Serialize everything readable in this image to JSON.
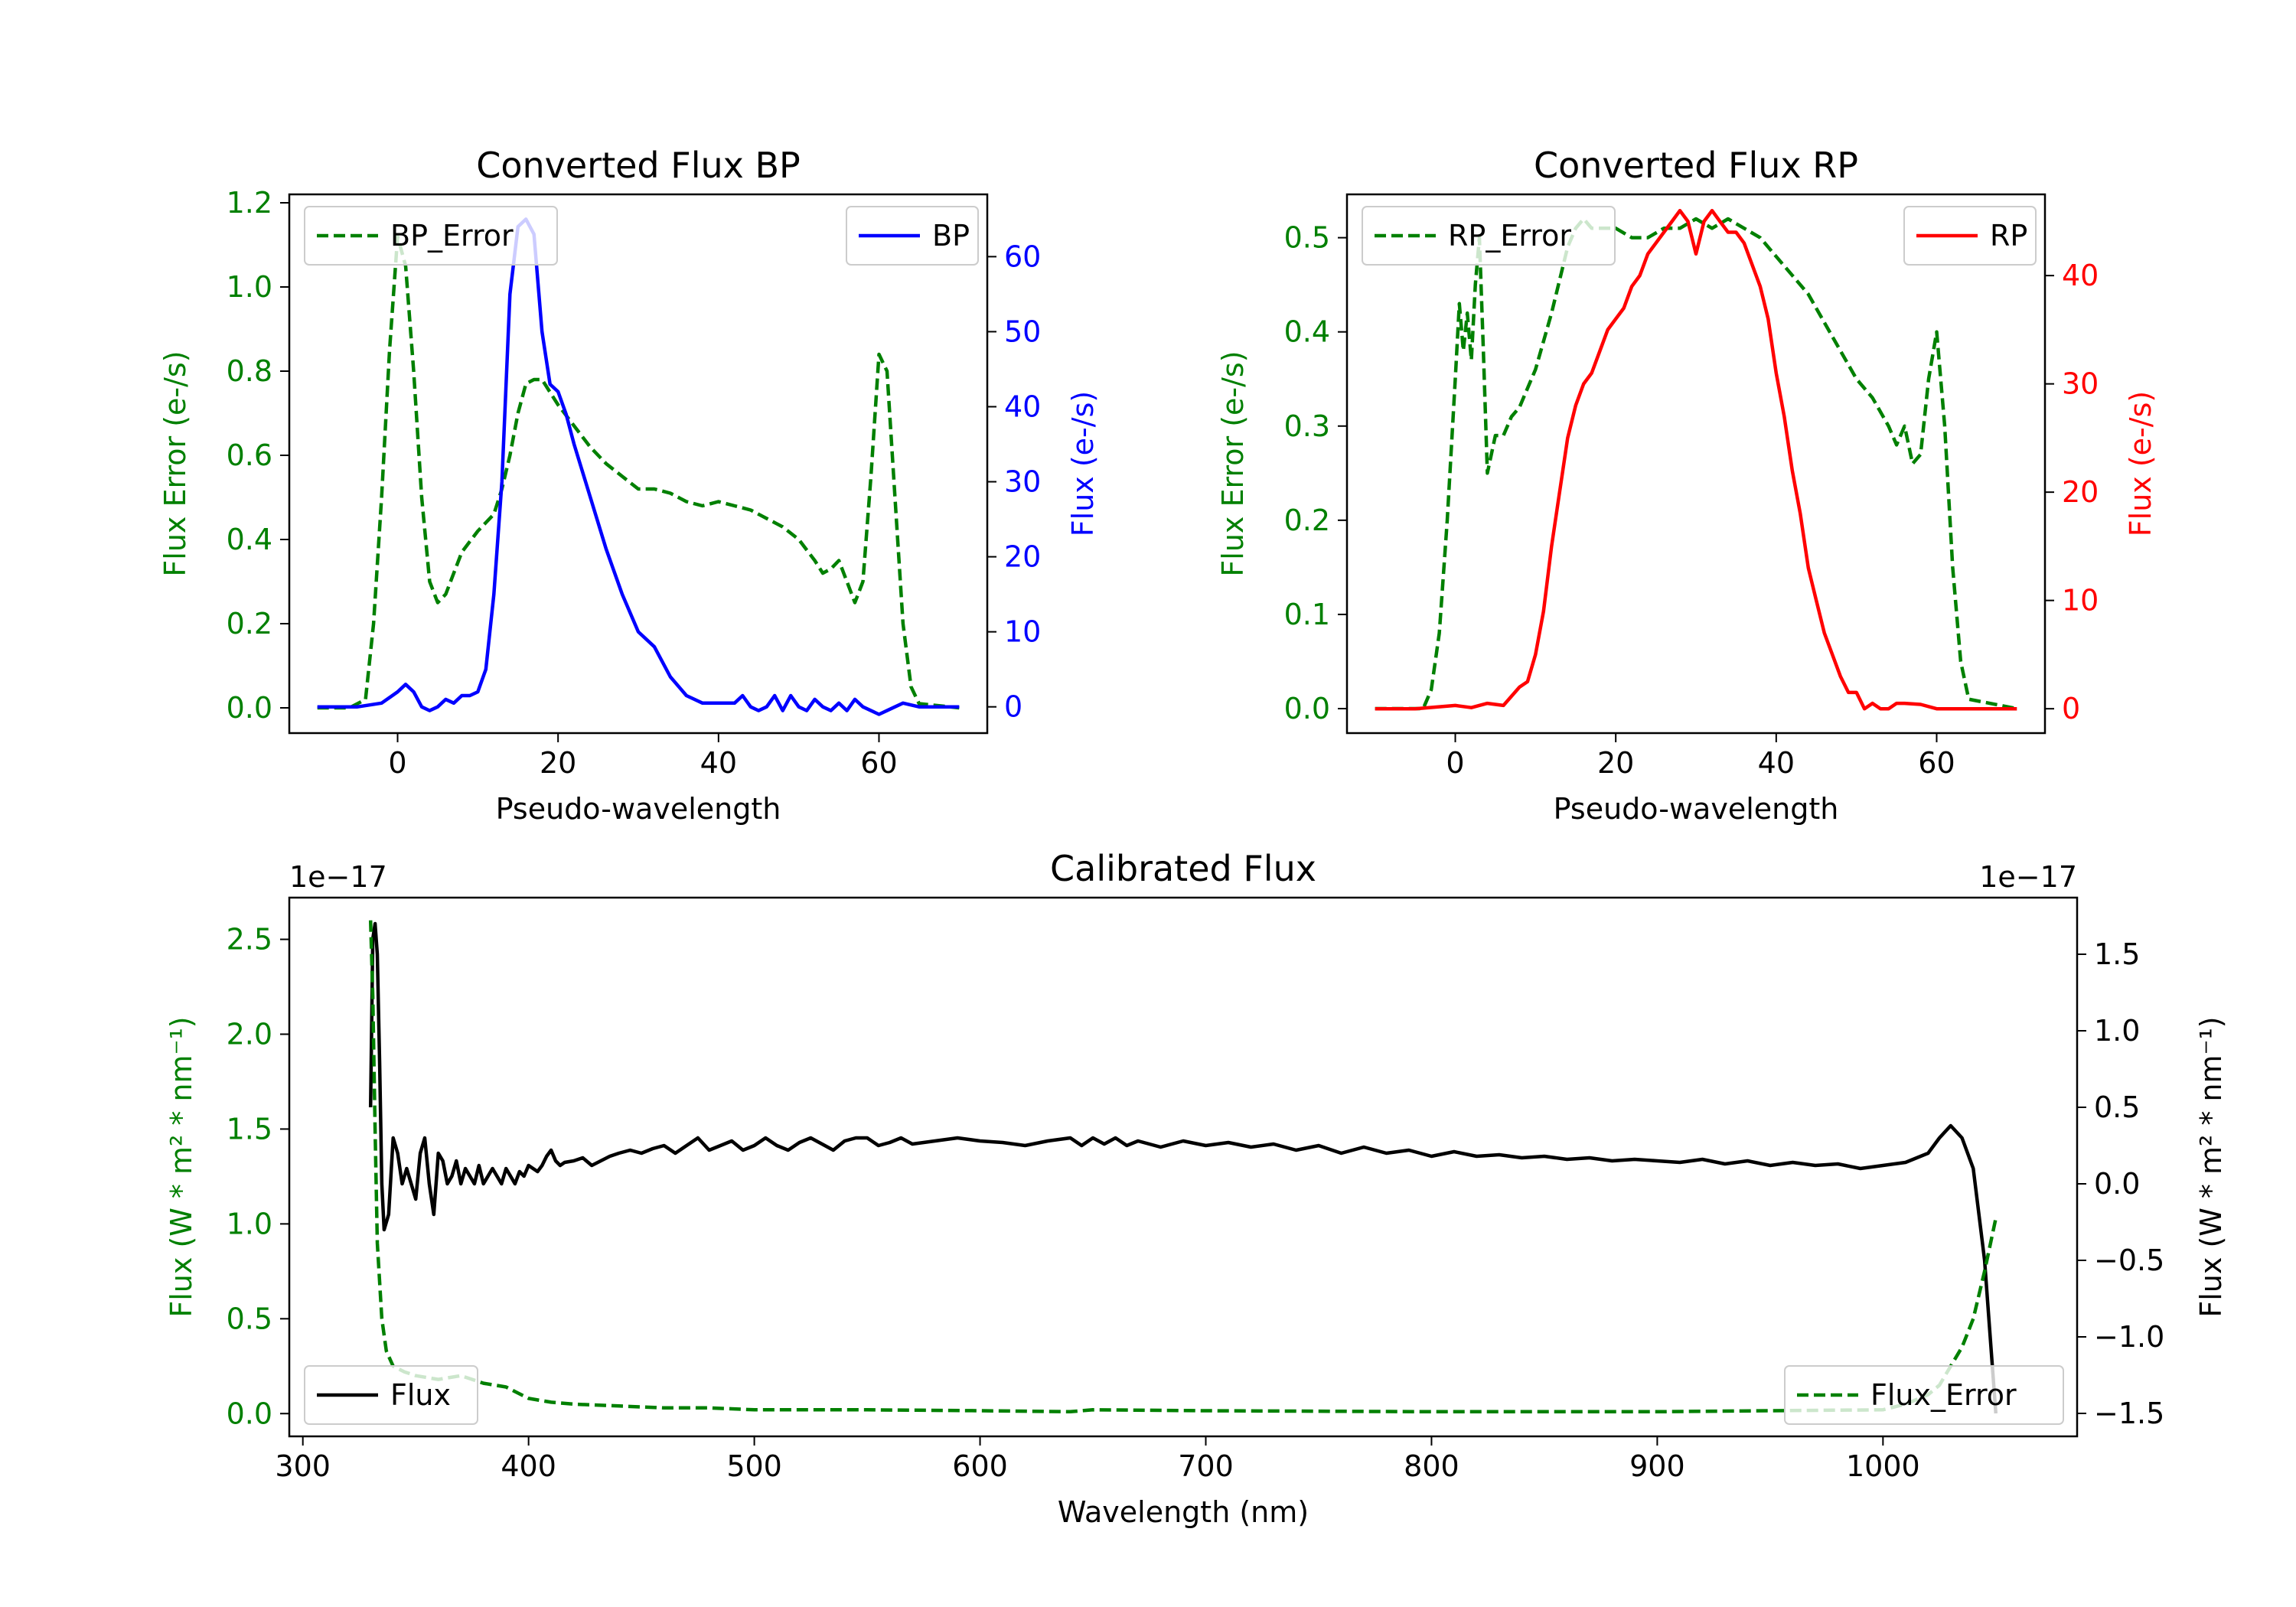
{
  "colors": {
    "bp": "#0000ff",
    "rp": "#ff0000",
    "error": "#008000",
    "flux": "#000000"
  },
  "chart_data": [
    {
      "type": "line",
      "title": "Converted Flux BP",
      "xlabel": "Pseudo-wavelength",
      "ylabel_left": "Flux Error (e-/s)",
      "ylabel_right": "Flux (e-/s)",
      "xlim": [
        -13.5,
        73.5
      ],
      "ylim_left": [
        -0.06,
        1.22
      ],
      "ylim_right": [
        -3.5,
        68.3
      ],
      "xticks": [
        0,
        20,
        40,
        60
      ],
      "yticks_left": [
        "0.0",
        "0.2",
        "0.4",
        "0.6",
        "0.8",
        "1.0",
        "1.2"
      ],
      "yticks_right": [
        "0",
        "10",
        "20",
        "30",
        "40",
        "50",
        "60"
      ],
      "legend_left": "BP_Error",
      "legend_right": "BP",
      "series": [
        {
          "name": "BP_Error",
          "axis": "left",
          "style": "dashed",
          "x": [
            -10,
            -6,
            -4,
            -3,
            -2,
            -1,
            0,
            1,
            2,
            3,
            4,
            5,
            6,
            7,
            8,
            10,
            12,
            13,
            14,
            15,
            16,
            17,
            18,
            19,
            20,
            22,
            24,
            26,
            28,
            30,
            32,
            34,
            35,
            36,
            38,
            40,
            42,
            44,
            46,
            48,
            50,
            52,
            53,
            54,
            55,
            56,
            57,
            58,
            59,
            60,
            61,
            62,
            63,
            64,
            65,
            70
          ],
          "y": [
            0,
            0,
            0.02,
            0.2,
            0.5,
            0.85,
            1.12,
            1.05,
            0.8,
            0.5,
            0.3,
            0.25,
            0.27,
            0.32,
            0.37,
            0.42,
            0.46,
            0.52,
            0.6,
            0.7,
            0.77,
            0.78,
            0.78,
            0.75,
            0.72,
            0.67,
            0.62,
            0.58,
            0.55,
            0.52,
            0.52,
            0.51,
            0.5,
            0.49,
            0.48,
            0.49,
            0.48,
            0.47,
            0.45,
            0.43,
            0.4,
            0.35,
            0.32,
            0.33,
            0.35,
            0.3,
            0.25,
            0.3,
            0.55,
            0.84,
            0.8,
            0.5,
            0.2,
            0.05,
            0.01,
            0
          ]
        },
        {
          "name": "BP",
          "axis": "right",
          "style": "solid",
          "x": [
            -10,
            -5,
            -2,
            0,
            1,
            2,
            3,
            4,
            5,
            6,
            7,
            8,
            9,
            10,
            11,
            12,
            13,
            14,
            15,
            16,
            17,
            18,
            19,
            20,
            21,
            22,
            24,
            26,
            28,
            30,
            32,
            34,
            36,
            38,
            40,
            42,
            43,
            44,
            45,
            46,
            47,
            48,
            49,
            50,
            51,
            52,
            53,
            54,
            55,
            56,
            57,
            58,
            59,
            60,
            61,
            62,
            63,
            65,
            70
          ],
          "y": [
            0,
            0,
            0.5,
            2,
            3,
            2,
            0,
            -0.5,
            0,
            1,
            0.5,
            1.5,
            1.5,
            2,
            5,
            15,
            30,
            55,
            64,
            65,
            63,
            50,
            43,
            42,
            39,
            35,
            28,
            21,
            15,
            10,
            8,
            4,
            1.5,
            0.5,
            0.5,
            0.5,
            1.5,
            0,
            -0.5,
            0,
            1.5,
            -0.5,
            1.5,
            0,
            -0.5,
            1,
            0,
            -0.5,
            0.5,
            -0.5,
            1,
            0,
            -0.5,
            -1,
            -0.5,
            0,
            0.5,
            0,
            0
          ]
        }
      ]
    },
    {
      "type": "line",
      "title": "Converted Flux RP",
      "xlabel": "Pseudo-wavelength",
      "ylabel_left": "Flux Error (e-/s)",
      "ylabel_right": "Flux (e-/s)",
      "xlim": [
        -13.5,
        73.5
      ],
      "ylim_left": [
        -0.026,
        0.546
      ],
      "ylim_right": [
        -2.25,
        47.5
      ],
      "xticks": [
        0,
        20,
        40,
        60
      ],
      "yticks_left": [
        "0.0",
        "0.1",
        "0.2",
        "0.3",
        "0.4",
        "0.5"
      ],
      "yticks_right": [
        "0",
        "10",
        "20",
        "30",
        "40"
      ],
      "legend_left": "RP_Error",
      "legend_right": "RP",
      "series": [
        {
          "name": "RP_Error",
          "axis": "left",
          "style": "dashed",
          "x": [
            -10,
            -4,
            -3,
            -2,
            -1,
            0,
            0.5,
            1,
            1.5,
            2,
            2.5,
            3,
            3.5,
            4,
            5,
            6,
            7,
            8,
            10,
            12,
            14,
            15,
            16,
            17,
            18,
            20,
            22,
            24,
            26,
            28,
            30,
            32,
            34,
            36,
            38,
            40,
            42,
            44,
            46,
            48,
            50,
            52,
            54,
            55,
            56,
            57,
            58,
            59,
            60,
            61,
            62,
            63,
            64,
            70
          ],
          "y": [
            0,
            0,
            0.02,
            0.08,
            0.2,
            0.35,
            0.43,
            0.38,
            0.42,
            0.37,
            0.45,
            0.5,
            0.38,
            0.25,
            0.29,
            0.29,
            0.31,
            0.32,
            0.36,
            0.42,
            0.49,
            0.51,
            0.52,
            0.51,
            0.51,
            0.51,
            0.5,
            0.5,
            0.51,
            0.51,
            0.52,
            0.51,
            0.52,
            0.51,
            0.5,
            0.48,
            0.46,
            0.44,
            0.41,
            0.38,
            0.35,
            0.33,
            0.3,
            0.28,
            0.3,
            0.26,
            0.27,
            0.35,
            0.4,
            0.3,
            0.15,
            0.05,
            0.01,
            0
          ]
        },
        {
          "name": "RP",
          "axis": "right",
          "style": "solid",
          "x": [
            -10,
            -5,
            0,
            2,
            4,
            6,
            8,
            9,
            10,
            11,
            12,
            13,
            14,
            15,
            16,
            17,
            18,
            19,
            20,
            21,
            22,
            23,
            24,
            25,
            26,
            27,
            28,
            29,
            30,
            31,
            32,
            33,
            34,
            35,
            36,
            37,
            38,
            39,
            40,
            41,
            42,
            43,
            44,
            45,
            46,
            47,
            48,
            49,
            50,
            51,
            52,
            53,
            54,
            55,
            56,
            58,
            60,
            65,
            70
          ],
          "y": [
            0,
            0,
            0.3,
            0.1,
            0.5,
            0.3,
            2,
            2.5,
            5,
            9,
            15,
            20,
            25,
            28,
            30,
            31,
            33,
            35,
            36,
            37,
            39,
            40,
            42,
            43,
            44,
            45,
            46,
            45,
            42,
            45,
            46,
            45,
            44,
            44,
            43,
            41,
            39,
            36,
            31,
            27,
            22,
            18,
            13,
            10,
            7,
            5,
            3,
            1.5,
            1.5,
            0,
            0.5,
            0,
            0,
            0.5,
            0.5,
            0.4,
            0,
            0,
            0
          ]
        }
      ]
    },
    {
      "type": "line",
      "title": "Calibrated Flux",
      "xlabel": "Wavelength (nm)",
      "ylabel_left": "Flux (W * m² * nm⁻¹)",
      "ylabel_right": "Flux (W * m² * nm⁻¹)",
      "offset_left": "1e−17",
      "offset_right": "1e−17",
      "xlim": [
        294,
        1086
      ],
      "ylim_left": [
        -0.12,
        2.72
      ],
      "ylim_right": [
        -1.65,
        1.87
      ],
      "xticks": [
        300,
        400,
        500,
        600,
        700,
        800,
        900,
        1000
      ],
      "yticks_left": [
        "0.0",
        "0.5",
        "1.0",
        "1.5",
        "2.0",
        "2.5"
      ],
      "yticks_right": [
        "−1.5",
        "−1.0",
        "−0.5",
        "0.0",
        "0.5",
        "1.0",
        "1.5"
      ],
      "legend_left": "Flux",
      "legend_right": "Flux_Error",
      "series": [
        {
          "name": "Flux",
          "axis": "right",
          "style": "solid",
          "x": [
            330,
            331,
            332,
            333,
            334,
            335,
            336,
            338,
            340,
            342,
            344,
            346,
            348,
            350,
            352,
            354,
            356,
            358,
            360,
            362,
            364,
            366,
            368,
            370,
            372,
            374,
            376,
            378,
            380,
            382,
            384,
            386,
            388,
            390,
            392,
            394,
            396,
            398,
            400,
            402,
            404,
            406,
            408,
            410,
            412,
            414,
            416,
            420,
            424,
            428,
            432,
            436,
            440,
            445,
            450,
            455,
            460,
            465,
            470,
            475,
            480,
            485,
            490,
            495,
            500,
            505,
            510,
            515,
            520,
            525,
            530,
            535,
            540,
            545,
            550,
            555,
            560,
            565,
            570,
            580,
            590,
            600,
            610,
            620,
            630,
            640,
            645,
            650,
            655,
            660,
            665,
            670,
            680,
            690,
            700,
            710,
            720,
            730,
            740,
            750,
            760,
            770,
            780,
            790,
            800,
            810,
            820,
            830,
            840,
            850,
            860,
            870,
            880,
            890,
            900,
            910,
            920,
            930,
            940,
            950,
            960,
            970,
            980,
            990,
            1000,
            1010,
            1020,
            1025,
            1030,
            1035,
            1040,
            1045,
            1048,
            1050
          ],
          "y": [
            0.5,
            1.6,
            1.7,
            1.5,
            0.8,
            0,
            -0.3,
            -0.2,
            0.3,
            0.2,
            0,
            0.1,
            0,
            -0.1,
            0.2,
            0.3,
            0,
            -0.2,
            0.2,
            0.15,
            0,
            0.05,
            0.15,
            0,
            0.1,
            0.05,
            0,
            0.12,
            0,
            0.05,
            0.1,
            0.05,
            0,
            0.1,
            0.05,
            0,
            0.08,
            0.05,
            0.12,
            0.1,
            0.08,
            0.12,
            0.18,
            0.22,
            0.15,
            0.12,
            0.14,
            0.15,
            0.17,
            0.12,
            0.15,
            0.18,
            0.2,
            0.22,
            0.2,
            0.23,
            0.25,
            0.2,
            0.25,
            0.3,
            0.22,
            0.25,
            0.28,
            0.22,
            0.25,
            0.3,
            0.25,
            0.22,
            0.27,
            0.3,
            0.26,
            0.22,
            0.28,
            0.3,
            0.3,
            0.25,
            0.27,
            0.3,
            0.26,
            0.28,
            0.3,
            0.28,
            0.27,
            0.25,
            0.28,
            0.3,
            0.25,
            0.3,
            0.26,
            0.3,
            0.25,
            0.28,
            0.24,
            0.28,
            0.25,
            0.27,
            0.24,
            0.26,
            0.22,
            0.25,
            0.2,
            0.24,
            0.2,
            0.22,
            0.18,
            0.21,
            0.18,
            0.19,
            0.17,
            0.18,
            0.16,
            0.17,
            0.15,
            0.16,
            0.15,
            0.14,
            0.16,
            0.13,
            0.15,
            0.12,
            0.14,
            0.12,
            0.13,
            0.1,
            0.12,
            0.14,
            0.2,
            0.3,
            0.38,
            0.3,
            0.1,
            -0.5,
            -1.1,
            -1.5
          ]
        },
        {
          "name": "Flux_Error",
          "axis": "left",
          "style": "dashed",
          "x": [
            330,
            331,
            332,
            333,
            335,
            337,
            340,
            345,
            350,
            360,
            370,
            380,
            390,
            400,
            410,
            420,
            440,
            460,
            480,
            500,
            550,
            600,
            640,
            650,
            700,
            800,
            900,
            950,
            1000,
            1010,
            1020,
            1025,
            1030,
            1035,
            1040,
            1045,
            1050
          ],
          "y": [
            2.6,
            2.2,
            1.5,
            0.9,
            0.5,
            0.33,
            0.25,
            0.22,
            0.2,
            0.18,
            0.2,
            0.16,
            0.14,
            0.08,
            0.06,
            0.05,
            0.04,
            0.03,
            0.03,
            0.02,
            0.02,
            0.015,
            0.01,
            0.02,
            0.015,
            0.01,
            0.01,
            0.015,
            0.02,
            0.05,
            0.1,
            0.15,
            0.25,
            0.35,
            0.5,
            0.75,
            1.03
          ]
        }
      ]
    }
  ]
}
